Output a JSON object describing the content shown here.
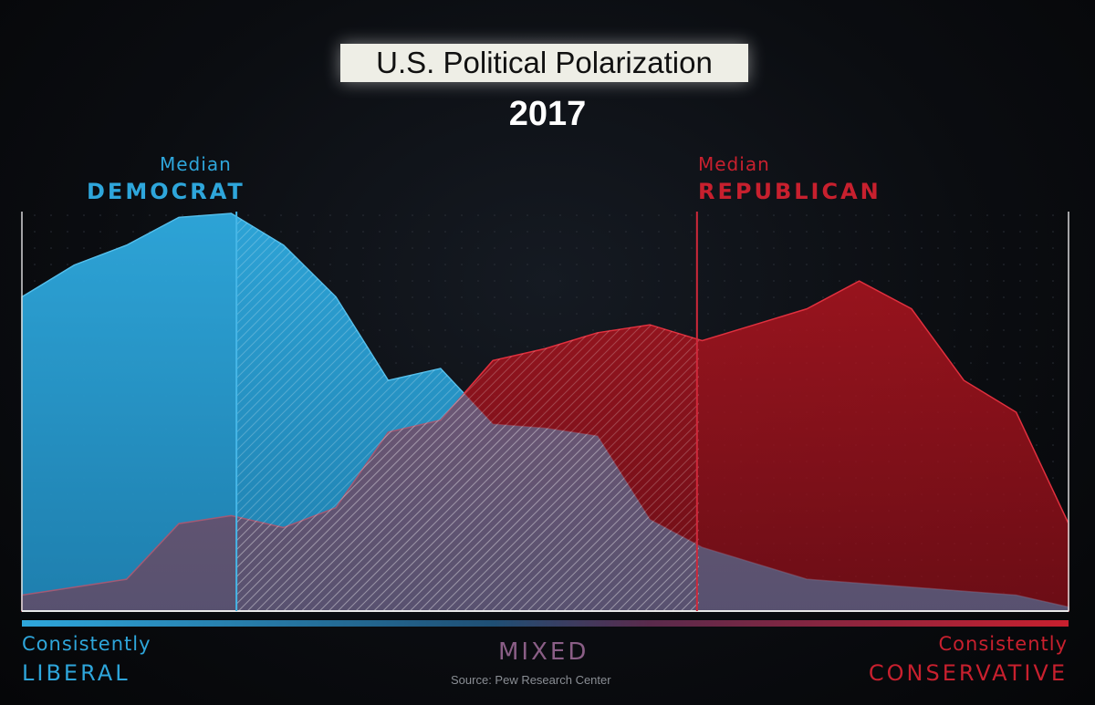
{
  "chart_data": {
    "type": "area",
    "title": "U.S. Political Polarization",
    "subtitle": "2017",
    "x": [
      0,
      1,
      2,
      3,
      4,
      5,
      6,
      7,
      8,
      9,
      10,
      11,
      12,
      13,
      14,
      15,
      16,
      17,
      18,
      19,
      20
    ],
    "xlim": [
      0,
      20
    ],
    "ylim": [
      0,
      100
    ],
    "series": [
      {
        "name": "Democrats",
        "color": "#2ea6db",
        "values": [
          79,
          87,
          92,
          99,
          100,
          92,
          79,
          58,
          61,
          47,
          46,
          44,
          23,
          16,
          12,
          8,
          7,
          6,
          5,
          4,
          1
        ]
      },
      {
        "name": "Republicans",
        "color": "#b3131f",
        "values": [
          4,
          6,
          8,
          22,
          24,
          21,
          26,
          45,
          48,
          63,
          66,
          70,
          72,
          68,
          72,
          76,
          83,
          76,
          58,
          50,
          22
        ]
      }
    ],
    "medians": [
      {
        "small": "Median",
        "big": "DEMOCRAT",
        "x": 4.1
      },
      {
        "small": "Median",
        "big": "REPUBLICAN",
        "x": 12.9
      }
    ],
    "xlabels": {
      "left_top": "Consistently",
      "left_bottom": "LIBERAL",
      "center": "MIXED",
      "right_top": "Consistently",
      "right_bottom": "CONSERVATIVE"
    }
  },
  "source": "Source: Pew Research Center"
}
